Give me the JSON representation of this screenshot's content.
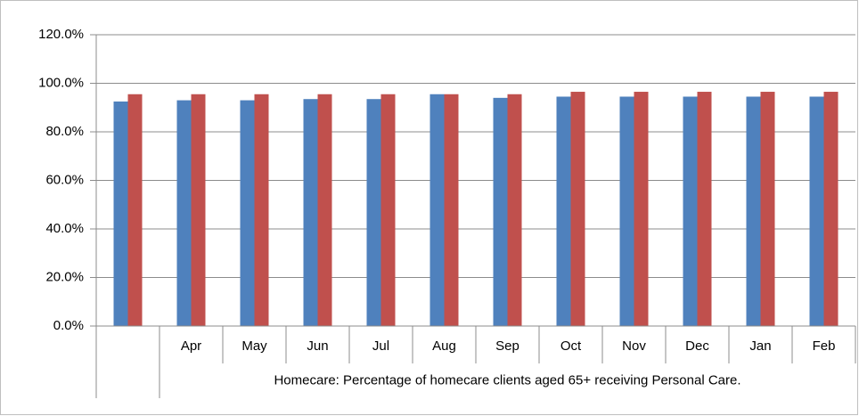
{
  "chart_data": {
    "type": "bar",
    "categories": [
      null,
      "Apr",
      "May",
      "Jun",
      "Jul",
      "Aug",
      "Sep",
      "Oct",
      "Nov",
      "Dec",
      "Jan",
      "Feb"
    ],
    "xlabel": "Homecare: Percentage of homecare clients aged 65+ receiving Personal Care.",
    "series": [
      {
        "color": "#4f81bd",
        "values": [
          92.5,
          93,
          93,
          93.5,
          93.5,
          95.5,
          94,
          94.5,
          94.5,
          94.5,
          94.5,
          94.5
        ]
      },
      {
        "color": "#c0504d",
        "values": [
          95.5,
          95.5,
          95.5,
          95.5,
          95.5,
          95.5,
          95.5,
          96.5,
          96.5,
          96.5,
          96.5,
          96.5
        ]
      }
    ],
    "ylim": [
      0,
      120
    ],
    "yticks": [
      {
        "value": 0,
        "label": "0.0%"
      },
      {
        "value": 20,
        "label": "20.0%"
      },
      {
        "value": 40,
        "label": "40.0%"
      },
      {
        "value": 60,
        "label": "60.0%"
      },
      {
        "value": 80,
        "label": "80.0%"
      },
      {
        "value": 100,
        "label": "100.0%"
      },
      {
        "value": 120,
        "label": "120.0%"
      }
    ],
    "grid": true
  }
}
